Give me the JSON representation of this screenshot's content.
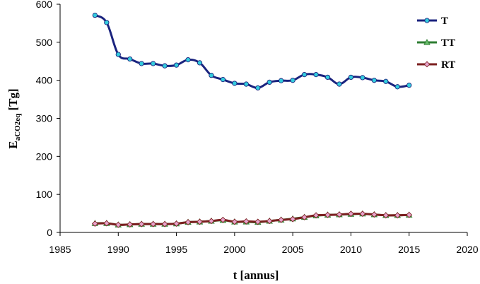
{
  "chart_data": {
    "type": "line",
    "xlabel": "t [annus]",
    "ylabel_main": "E",
    "ylabel_sub": "aCO2eq",
    "ylabel_unit": " [Tg]",
    "xlim": [
      1985,
      2020
    ],
    "ylim": [
      0,
      600
    ],
    "xticks": [
      1985,
      1990,
      1995,
      2000,
      2005,
      2010,
      2015,
      2020
    ],
    "yticks": [
      0,
      100,
      200,
      300,
      400,
      500,
      600
    ],
    "grid": false,
    "legend_position": "top-right",
    "x": [
      1988,
      1989,
      1990,
      1991,
      1992,
      1993,
      1994,
      1995,
      1996,
      1997,
      1998,
      1999,
      2000,
      2001,
      2002,
      2003,
      2004,
      2005,
      2006,
      2007,
      2008,
      2009,
      2010,
      2011,
      2012,
      2013,
      2014,
      2015
    ],
    "series": [
      {
        "name": "T",
        "color": "#1a237e",
        "marker_color": "#33ccdd",
        "marker": "circle",
        "values": [
          571,
          552,
          468,
          456,
          444,
          444,
          438,
          440,
          454,
          446,
          413,
          402,
          392,
          390,
          380,
          395,
          399,
          400,
          415,
          415,
          408,
          390,
          408,
          407,
          400,
          397,
          383,
          387
        ]
      },
      {
        "name": "TT",
        "color": "#2e7d32",
        "marker_color": "#66bb6a",
        "marker": "triangle",
        "values": [
          24,
          24,
          20,
          21,
          22,
          22,
          22,
          23,
          27,
          28,
          30,
          32,
          28,
          28,
          27,
          30,
          33,
          36,
          40,
          44,
          46,
          47,
          48,
          49,
          47,
          45,
          45,
          46
        ]
      },
      {
        "name": "RT",
        "color": "#7b1f1f",
        "marker_color": "#e7a3cc",
        "marker": "diamond",
        "values": [
          23,
          24,
          20,
          21,
          22,
          22,
          22,
          23,
          27,
          28,
          30,
          33,
          28,
          29,
          28,
          30,
          33,
          35,
          40,
          45,
          46,
          47,
          49,
          49,
          47,
          45,
          45,
          46
        ]
      }
    ]
  }
}
